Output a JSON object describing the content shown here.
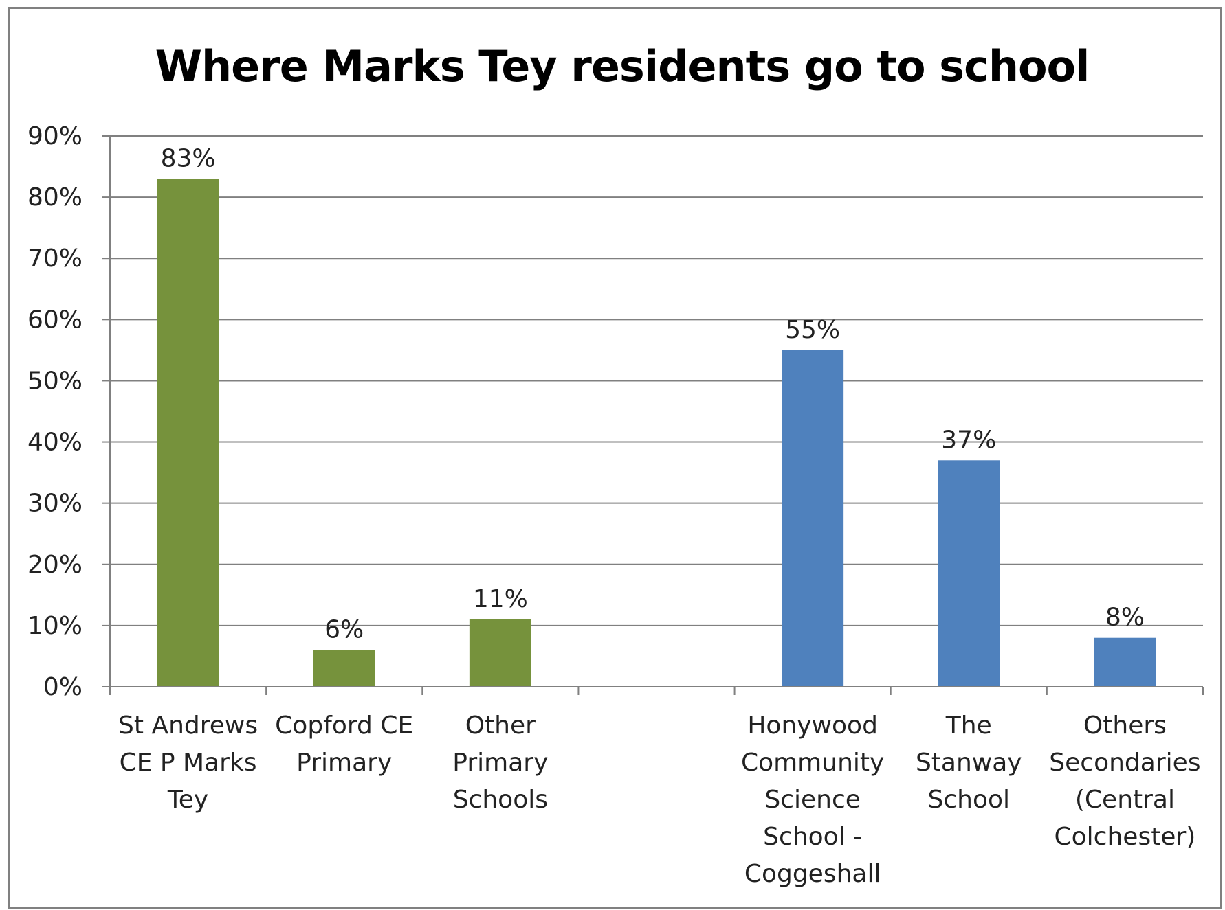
{
  "chart_data": {
    "type": "bar",
    "title": "Where Marks Tey residents go to school",
    "xlabel": "",
    "ylabel": "",
    "ylim": [
      0,
      90
    ],
    "yticks": [
      "0%",
      "10%",
      "20%",
      "30%",
      "40%",
      "50%",
      "60%",
      "70%",
      "80%",
      "90%"
    ],
    "grid": true,
    "legend": "none",
    "categories": [
      [
        "St Andrews",
        "CE   P Marks",
        "Tey"
      ],
      [
        "Copford CE",
        "Primary"
      ],
      [
        "Other",
        "Primary",
        "Schools"
      ],
      [],
      [
        "Honywood",
        "Community",
        "Science",
        "School -",
        "Coggeshall"
      ],
      [
        "The",
        "Stanway",
        "School"
      ],
      [
        "Others",
        "Secondaries",
        "(Central",
        "Colchester)"
      ]
    ],
    "values": [
      83,
      6,
      11,
      null,
      55,
      37,
      8
    ],
    "data_labels": [
      "83%",
      "6%",
      "11%",
      "",
      "55%",
      "37%",
      "8%"
    ],
    "colors": [
      "#76923c",
      "#76923c",
      "#76923c",
      null,
      "#4f81bd",
      "#4f81bd",
      "#4f81bd"
    ],
    "axis_color": "#808080",
    "grid_color": "#808080"
  }
}
